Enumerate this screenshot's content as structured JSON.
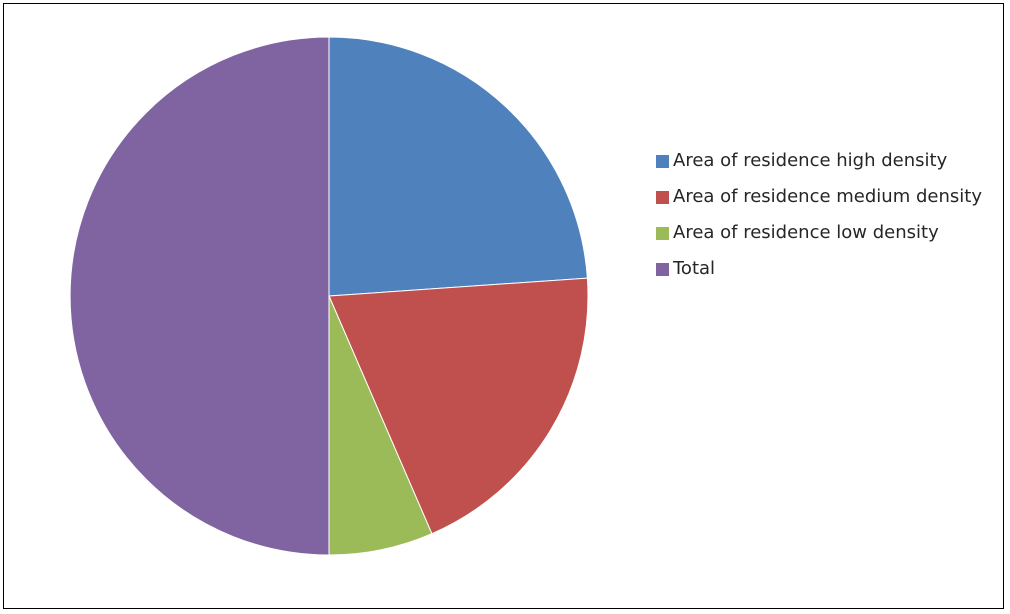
{
  "chart_data": {
    "type": "pie",
    "title": "",
    "legend_position": "right",
    "start_angle": "12 o'clock",
    "direction": "clockwise",
    "slices": [
      {
        "label": "Area of residence high density",
        "value": 23.9,
        "color": "#4F81BD"
      },
      {
        "label": "Area of residence medium density",
        "value": 19.6,
        "color": "#C0504D"
      },
      {
        "label": "Area of residence low density",
        "value": 6.5,
        "color": "#9BBB59"
      },
      {
        "label": "Total",
        "value": 50.0,
        "color": "#8064A2"
      }
    ]
  }
}
